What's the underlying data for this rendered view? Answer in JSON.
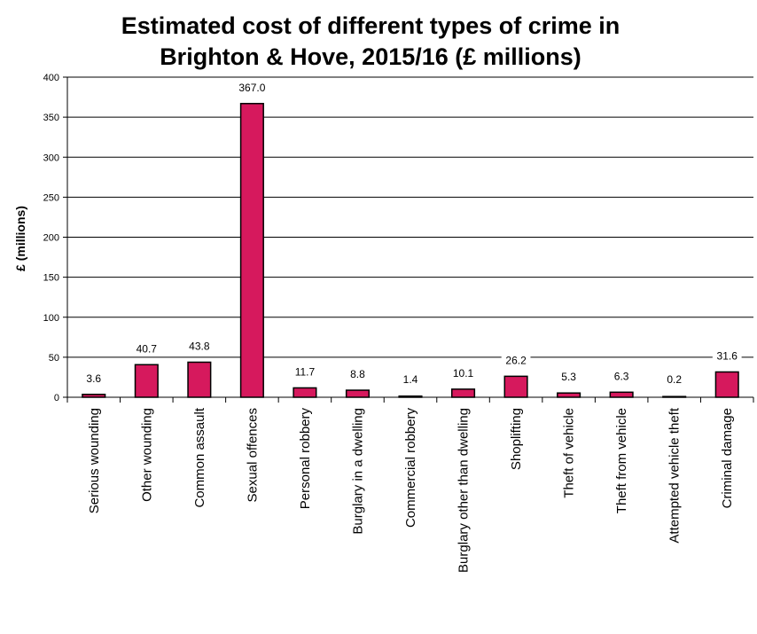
{
  "chart_data": {
    "type": "bar",
    "title_line1": "Estimated cost of different types of crime in",
    "title_line2": "Brighton & Hove, 2015/16 (£ millions)",
    "xlabel": "",
    "ylabel": "£ (millions)",
    "ylim": [
      0,
      400
    ],
    "yticks": [
      "0",
      "50",
      "100",
      "150",
      "200",
      "250",
      "300",
      "350",
      "400"
    ],
    "grid": true,
    "legend": "none",
    "bar_color": "#d6195d",
    "categories": [
      "Serious wounding",
      "Other wounding",
      "Common assault",
      "Sexual offences",
      "Personal robbery",
      "Burglary in a dwelling",
      "Commercial robbery",
      "Burglary other than dwelling",
      "Shoplifting",
      "Theft of vehicle",
      "Theft from vehicle",
      "Attempted vehicle theft",
      "Criminal damage"
    ],
    "values": [
      3.6,
      40.7,
      43.8,
      367.0,
      11.7,
      8.8,
      1.4,
      10.1,
      26.2,
      5.3,
      6.3,
      0.2,
      31.6
    ],
    "value_labels": [
      "3.6",
      "40.7",
      "43.8",
      "367.0",
      "11.7",
      "8.8",
      "1.4",
      "10.1",
      "26.2",
      "5.3",
      "6.3",
      "0.2",
      "31.6"
    ]
  }
}
